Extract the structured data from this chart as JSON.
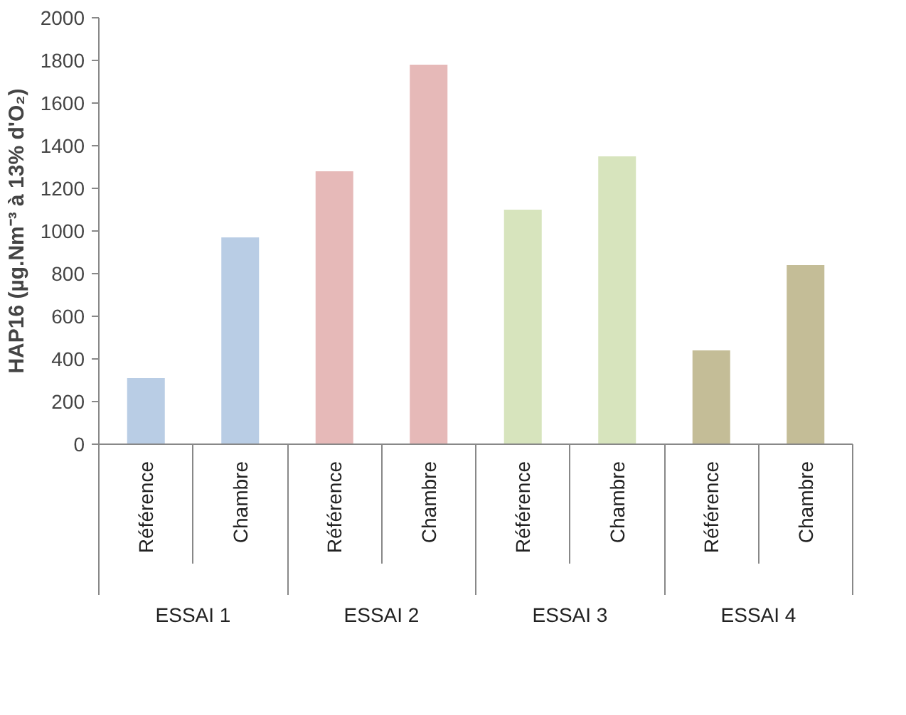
{
  "chart_data": {
    "type": "bar",
    "ylabel": "HAP16 (µg.Nm⁻³ à 13% d'O₂)",
    "categories": [
      "Référence",
      "Chambre",
      "Référence",
      "Chambre",
      "Référence",
      "Chambre",
      "Référence",
      "Chambre"
    ],
    "annotations": [
      "ESSAI 1",
      "ESSAI 2",
      "ESSAI 3",
      "ESSAI 4"
    ],
    "values": [
      310,
      970,
      1280,
      1780,
      1100,
      1350,
      440,
      840
    ],
    "colors": [
      "#b9cde5",
      "#b9cde5",
      "#e6b9b8",
      "#e6b9b8",
      "#d7e4bd",
      "#d7e4bd",
      "#c4bd97",
      "#c4bd97"
    ],
    "ylim": [
      0,
      2000
    ],
    "yticks": [
      0,
      200,
      400,
      600,
      800,
      1000,
      1200,
      1400,
      1600,
      1800,
      2000
    ],
    "grid": false
  }
}
